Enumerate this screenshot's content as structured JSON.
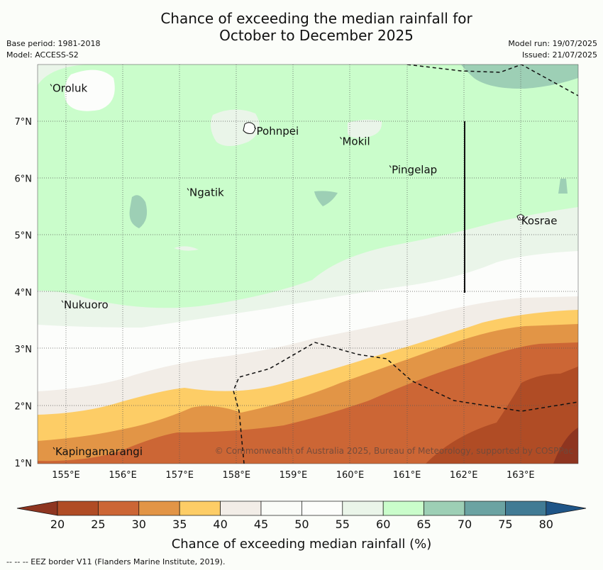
{
  "title_line1": "Chance of exceeding the median rainfall for",
  "title_line2": "October to December 2025",
  "base_period": "Base period: 1981-2018",
  "model": "Model: ACCESS-S2",
  "model_run": "Model run: 19/07/2025",
  "issued": "Issued: 21/07/2025",
  "lon_ticks": [
    "155°E",
    "156°E",
    "157°E",
    "158°E",
    "159°E",
    "160°E",
    "161°E",
    "162°E",
    "163°E"
  ],
  "lat_ticks": [
    "7°N",
    "6°N",
    "5°N",
    "4°N",
    "3°N",
    "2°N",
    "1°N"
  ],
  "places": [
    {
      "name": "Oroluk",
      "lon": 154.75,
      "lat": 7.63
    },
    {
      "name": "Pohnpei",
      "lon": 158.34,
      "lat": 6.88
    },
    {
      "name": "Mokil",
      "lon": 159.85,
      "lat": 6.7
    },
    {
      "name": "Pingelap",
      "lon": 160.72,
      "lat": 6.2
    },
    {
      "name": "Ngatik",
      "lon": 157.16,
      "lat": 5.8
    },
    {
      "name": "Kosrae",
      "lon": 163.0,
      "lat": 5.3
    },
    {
      "name": "Nukuoro",
      "lon": 154.95,
      "lat": 3.83
    },
    {
      "name": "Kapingamarangi",
      "lon": 154.8,
      "lat": 1.25
    }
  ],
  "copyright": "© Commonwealth of Australia 2025, Bureau of Meteorology, supported by COSPPac",
  "colorbar": {
    "ticks": [
      "20",
      "25",
      "30",
      "35",
      "40",
      "45",
      "50",
      "55",
      "60",
      "65",
      "70",
      "75",
      "80"
    ],
    "colors": [
      "#b04c25",
      "#cc6635",
      "#e29546",
      "#fdcd66",
      "#f2ede7",
      "#fafcf8",
      "#fcfdfb",
      "#eaf5e9",
      "#cafdcb",
      "#9dcfb5",
      "#6ba3a2",
      "#417b94"
    ],
    "low_extend_color": "#8e3520",
    "high_extend_color": "#1f5587",
    "label": "Chance of exceeding median rainfall (%)"
  },
  "footnote": "--  --  -- EEZ border V11 (Flanders Marine Institute, 2019)."
}
